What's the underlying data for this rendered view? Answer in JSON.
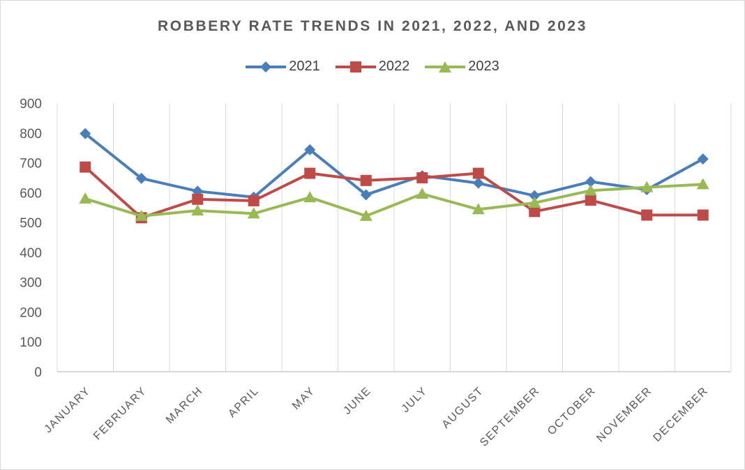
{
  "chart_data": {
    "type": "line",
    "title": "ROBBERY RATE TRENDS IN 2021, 2022, AND 2023",
    "xlabel": "",
    "ylabel": "",
    "categories": [
      "JANUARY",
      "FEBRUARY",
      "MARCH",
      "APRIL",
      "MAY",
      "JUNE",
      "JULY",
      "AUGUST",
      "SEPTEMBER",
      "OCTOBER",
      "NOVEMBER",
      "DECEMBER"
    ],
    "ylim": [
      0,
      900
    ],
    "yticks": [
      "0",
      "100",
      "200",
      "300",
      "400",
      "500",
      "600",
      "700",
      "800",
      "900"
    ],
    "grid": "vertical",
    "legend_position": "top",
    "series": [
      {
        "name": "2021",
        "color": "#4a7ebb",
        "marker": "diamond",
        "values": [
          798,
          648,
          605,
          585,
          744,
          593,
          657,
          632,
          590,
          637,
          610,
          713
        ]
      },
      {
        "name": "2022",
        "color": "#be4b48",
        "marker": "square",
        "values": [
          686,
          516,
          578,
          573,
          665,
          641,
          650,
          665,
          537,
          575,
          525,
          525
        ]
      },
      {
        "name": "2023",
        "color": "#98b954",
        "marker": "triangle",
        "values": [
          580,
          522,
          540,
          530,
          584,
          522,
          596,
          544,
          566,
          607,
          618,
          628
        ]
      }
    ]
  }
}
